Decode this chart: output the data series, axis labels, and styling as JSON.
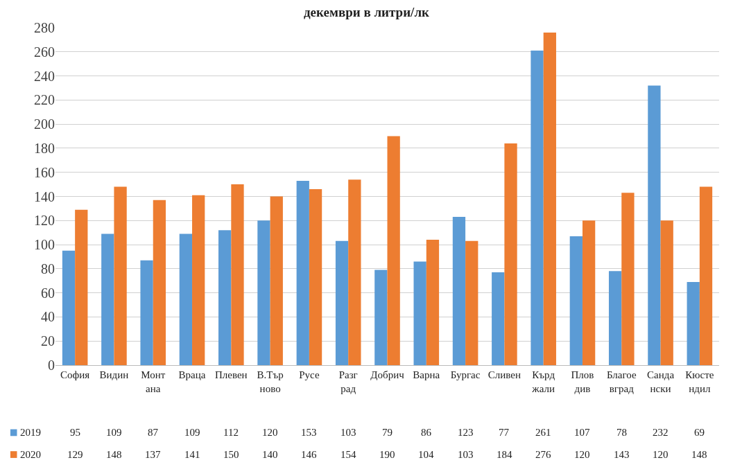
{
  "chart_data": {
    "type": "bar",
    "title": "декември в литри/лк",
    "categories": [
      "София",
      "Видин",
      "Монтана",
      "Враца",
      "Плевен",
      "В.Търново",
      "Русе",
      "Разград",
      "Добрич",
      "Варна",
      "Бургас",
      "Сливен",
      "Кърджали",
      "Пловдив",
      "Благоевград",
      "Сандански",
      "Кюстендил"
    ],
    "series": [
      {
        "name": "2019",
        "color": "#5b9bd5",
        "values": [
          95,
          109,
          87,
          109,
          112,
          120,
          153,
          103,
          79,
          86,
          123,
          77,
          261,
          107,
          78,
          232,
          69
        ]
      },
      {
        "name": "2020",
        "color": "#ed7d31",
        "values": [
          129,
          148,
          137,
          141,
          150,
          140,
          146,
          154,
          190,
          104,
          103,
          184,
          276,
          120,
          143,
          120,
          148
        ]
      }
    ],
    "ylim": [
      0,
      280
    ],
    "yticks": [
      0,
      20,
      40,
      60,
      80,
      100,
      120,
      140,
      160,
      180,
      200,
      220,
      240,
      260,
      280
    ],
    "grid": "y",
    "legend": "bottom left",
    "data_labels": true
  }
}
